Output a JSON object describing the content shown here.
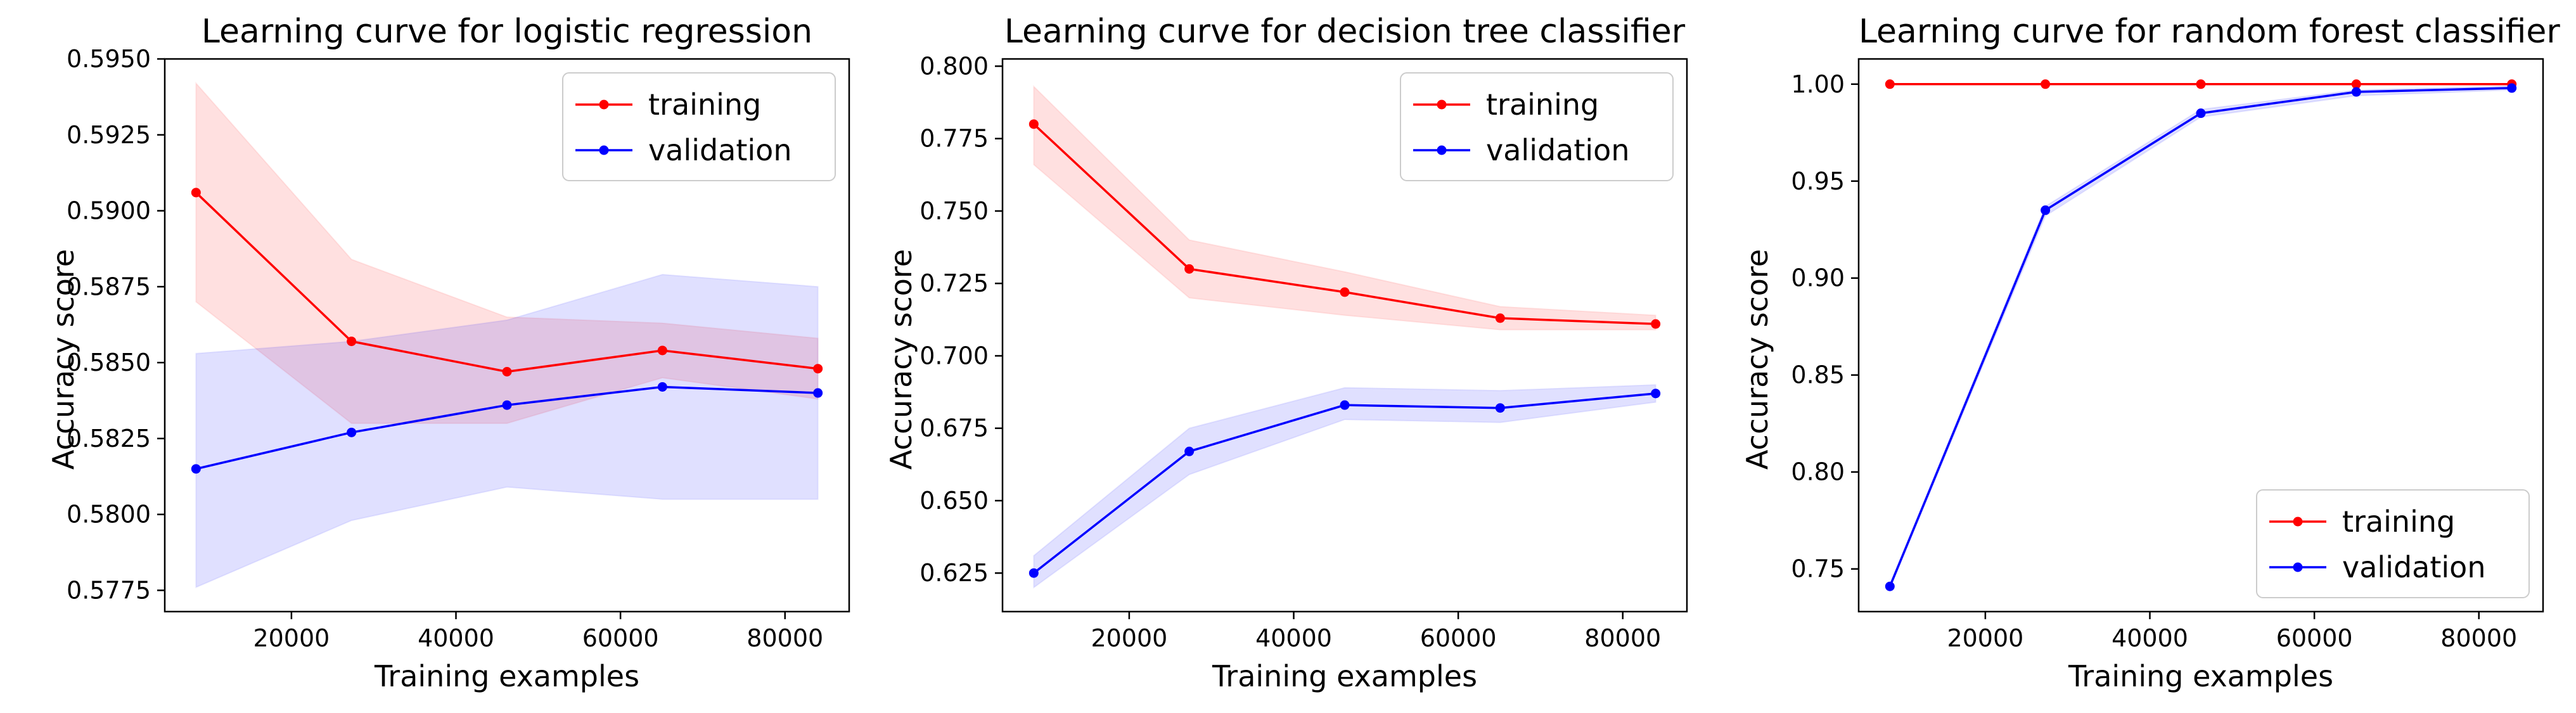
{
  "colors": {
    "training": "#ff0000",
    "validation": "#0000ff",
    "training_band": "#ff0000",
    "validation_band": "#0000ff"
  },
  "chart_data": [
    {
      "type": "line",
      "title": "Learning curve for logistic regression",
      "xlabel": "Training examples",
      "ylabel": "Accuracy score",
      "x": [
        8400,
        27300,
        46200,
        65100,
        84000
      ],
      "xlim": [
        4600,
        87800
      ],
      "ylim": [
        0.5768,
        0.595
      ],
      "xticks": [
        20000,
        40000,
        60000,
        80000
      ],
      "xtick_labels": [
        "20000",
        "40000",
        "60000",
        "80000"
      ],
      "yticks": [
        0.5775,
        0.58,
        0.5825,
        0.585,
        0.5875,
        0.59,
        0.5925,
        0.595
      ],
      "ytick_labels": [
        "0.5775",
        "0.5800",
        "0.5825",
        "0.5850",
        "0.5875",
        "0.5900",
        "0.5925",
        "0.5950"
      ],
      "legend_position": "upper right",
      "series": [
        {
          "name": "training",
          "color": "#ff0000",
          "values": [
            0.5906,
            0.5857,
            0.5847,
            0.5854,
            0.5848
          ],
          "band_low": [
            0.587,
            0.583,
            0.583,
            0.5845,
            0.5838
          ],
          "band_high": [
            0.5942,
            0.5884,
            0.5865,
            0.5863,
            0.5858
          ]
        },
        {
          "name": "validation",
          "color": "#0000ff",
          "values": [
            0.5815,
            0.5827,
            0.5836,
            0.5842,
            0.584
          ],
          "band_low": [
            0.5776,
            0.5798,
            0.5809,
            0.5805,
            0.5805
          ],
          "band_high": [
            0.5853,
            0.5857,
            0.5864,
            0.5879,
            0.5875
          ]
        }
      ]
    },
    {
      "type": "line",
      "title": "Learning curve for decision tree classifier",
      "xlabel": "Training examples",
      "ylabel": "Accuracy score",
      "x": [
        8400,
        27300,
        46200,
        65100,
        84000
      ],
      "xlim": [
        4600,
        87800
      ],
      "ylim": [
        0.6117,
        0.8025
      ],
      "xticks": [
        20000,
        40000,
        60000,
        80000
      ],
      "xtick_labels": [
        "20000",
        "40000",
        "60000",
        "80000"
      ],
      "yticks": [
        0.625,
        0.65,
        0.675,
        0.7,
        0.725,
        0.75,
        0.775,
        0.8
      ],
      "ytick_labels": [
        "0.625",
        "0.650",
        "0.675",
        "0.700",
        "0.725",
        "0.750",
        "0.775",
        "0.800"
      ],
      "legend_position": "upper right",
      "series": [
        {
          "name": "training",
          "color": "#ff0000",
          "values": [
            0.78,
            0.73,
            0.722,
            0.713,
            0.711
          ],
          "band_low": [
            0.766,
            0.72,
            0.714,
            0.709,
            0.709
          ],
          "band_high": [
            0.793,
            0.74,
            0.729,
            0.717,
            0.714
          ]
        },
        {
          "name": "validation",
          "color": "#0000ff",
          "values": [
            0.625,
            0.667,
            0.683,
            0.682,
            0.687
          ],
          "band_low": [
            0.62,
            0.659,
            0.678,
            0.677,
            0.684
          ],
          "band_high": [
            0.631,
            0.675,
            0.689,
            0.688,
            0.69
          ]
        }
      ]
    },
    {
      "type": "line",
      "title": "Learning curve for random forest classifier",
      "xlabel": "Training examples",
      "ylabel": "Accuracy score",
      "x": [
        8400,
        27300,
        46200,
        65100,
        84000
      ],
      "xlim": [
        4600,
        87800
      ],
      "ylim": [
        0.728,
        1.013
      ],
      "xticks": [
        20000,
        40000,
        60000,
        80000
      ],
      "xtick_labels": [
        "20000",
        "40000",
        "60000",
        "80000"
      ],
      "yticks": [
        0.75,
        0.8,
        0.85,
        0.9,
        0.95,
        1.0
      ],
      "ytick_labels": [
        "0.75",
        "0.80",
        "0.85",
        "0.90",
        "0.95",
        "1.00"
      ],
      "legend_position": "lower right",
      "series": [
        {
          "name": "training",
          "color": "#ff0000",
          "values": [
            1.0,
            1.0,
            1.0,
            1.0,
            1.0
          ],
          "band_low": [
            1.0,
            1.0,
            1.0,
            1.0,
            0.9995
          ],
          "band_high": [
            1.0,
            1.0,
            1.0,
            1.0,
            1.0
          ]
        },
        {
          "name": "validation",
          "color": "#0000ff",
          "values": [
            0.741,
            0.935,
            0.985,
            0.996,
            0.998
          ],
          "band_low": [
            0.74,
            0.932,
            0.983,
            0.994,
            0.997
          ],
          "band_high": [
            0.742,
            0.937,
            0.987,
            0.997,
            0.999
          ]
        }
      ]
    }
  ]
}
